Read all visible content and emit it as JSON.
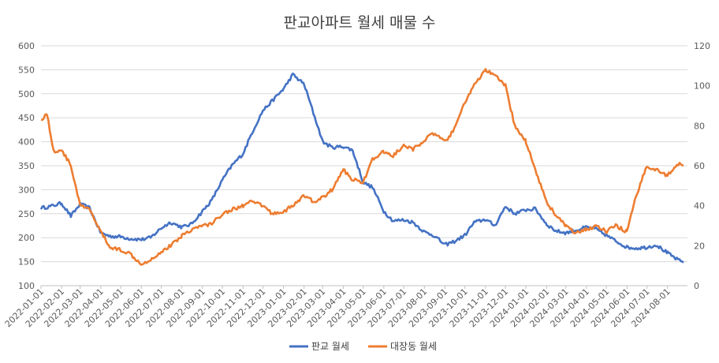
{
  "chart_data": {
    "type": "line",
    "title": "판교아파트 월세 매물 수",
    "x": [
      "2022-01-01",
      "2022-02-01",
      "2022-03-01",
      "2022-04-01",
      "2022-05-01",
      "2022-06-01",
      "2022-07-01",
      "2022-08-01",
      "2022-09-01",
      "2022-10-01",
      "2022-11-01",
      "2022-12-01",
      "2023-01-01",
      "2023-02-01",
      "2023-03-01",
      "2023-04-01",
      "2023-05-01",
      "2023-06-01",
      "2023-07-01",
      "2023-08-01",
      "2023-09-01",
      "2023-10-01",
      "2023-11-01",
      "2023-12-01",
      "2024-01-01",
      "2024-02-01",
      "2024-03-01",
      "2024-04-01",
      "2024-05-01",
      "2024-06-01",
      "2024-07-01",
      "2024-08-01"
    ],
    "series": [
      {
        "name": "판교 월세",
        "axis": "left",
        "color": "#4472C4",
        "points": [
          [
            "2022-01-01",
            262
          ],
          [
            "2022-01-15",
            265
          ],
          [
            "2022-02-01",
            272
          ],
          [
            "2022-02-15",
            245
          ],
          [
            "2022-03-01",
            270
          ],
          [
            "2022-03-15",
            262
          ],
          [
            "2022-04-01",
            210
          ],
          [
            "2022-04-15",
            203
          ],
          [
            "2022-05-01",
            202
          ],
          [
            "2022-05-15",
            198
          ],
          [
            "2022-06-01",
            196
          ],
          [
            "2022-06-15",
            200
          ],
          [
            "2022-07-01",
            220
          ],
          [
            "2022-07-15",
            232
          ],
          [
            "2022-08-01",
            222
          ],
          [
            "2022-08-15",
            228
          ],
          [
            "2022-09-01",
            255
          ],
          [
            "2022-09-15",
            278
          ],
          [
            "2022-10-01",
            320
          ],
          [
            "2022-10-15",
            350
          ],
          [
            "2022-11-01",
            375
          ],
          [
            "2022-11-15",
            420
          ],
          [
            "2022-12-01",
            465
          ],
          [
            "2022-12-15",
            485
          ],
          [
            "2023-01-01",
            510
          ],
          [
            "2023-01-15",
            540
          ],
          [
            "2023-02-01",
            520
          ],
          [
            "2023-02-15",
            460
          ],
          [
            "2023-03-01",
            400
          ],
          [
            "2023-03-15",
            388
          ],
          [
            "2023-04-01",
            390
          ],
          [
            "2023-04-15",
            382
          ],
          [
            "2023-05-01",
            315
          ],
          [
            "2023-05-15",
            305
          ],
          [
            "2023-06-01",
            255
          ],
          [
            "2023-06-15",
            235
          ],
          [
            "2023-07-01",
            237
          ],
          [
            "2023-07-15",
            232
          ],
          [
            "2023-08-01",
            212
          ],
          [
            "2023-08-15",
            205
          ],
          [
            "2023-09-01",
            185
          ],
          [
            "2023-09-15",
            192
          ],
          [
            "2023-10-01",
            205
          ],
          [
            "2023-10-15",
            232
          ],
          [
            "2023-11-01",
            238
          ],
          [
            "2023-11-15",
            225
          ],
          [
            "2023-12-01",
            265
          ],
          [
            "2023-12-15",
            250
          ],
          [
            "2024-01-01",
            258
          ],
          [
            "2024-01-15",
            260
          ],
          [
            "2024-02-01",
            228
          ],
          [
            "2024-02-15",
            214
          ],
          [
            "2024-03-01",
            210
          ],
          [
            "2024-03-15",
            215
          ],
          [
            "2024-04-01",
            222
          ],
          [
            "2024-04-15",
            218
          ],
          [
            "2024-05-01",
            205
          ],
          [
            "2024-05-15",
            193
          ],
          [
            "2024-06-01",
            180
          ],
          [
            "2024-06-15",
            178
          ],
          [
            "2024-07-01",
            180
          ],
          [
            "2024-07-15",
            185
          ],
          [
            "2024-08-01",
            168
          ],
          [
            "2024-08-15",
            155
          ],
          [
            "2024-08-25",
            148
          ]
        ]
      },
      {
        "name": "대장동 월세",
        "axis": "right",
        "color": "#ED7D31",
        "points": [
          [
            "2022-01-01",
            83
          ],
          [
            "2022-01-10",
            86
          ],
          [
            "2022-01-20",
            67
          ],
          [
            "2022-02-01",
            68
          ],
          [
            "2022-02-15",
            60
          ],
          [
            "2022-03-01",
            40
          ],
          [
            "2022-03-15",
            38
          ],
          [
            "2022-04-01",
            27
          ],
          [
            "2022-04-15",
            19
          ],
          [
            "2022-05-01",
            18
          ],
          [
            "2022-05-15",
            16
          ],
          [
            "2022-06-01",
            11
          ],
          [
            "2022-06-15",
            13
          ],
          [
            "2022-07-01",
            17
          ],
          [
            "2022-07-15",
            20
          ],
          [
            "2022-08-01",
            25
          ],
          [
            "2022-08-15",
            28
          ],
          [
            "2022-09-01",
            30
          ],
          [
            "2022-09-15",
            31
          ],
          [
            "2022-10-01",
            36
          ],
          [
            "2022-10-15",
            38
          ],
          [
            "2022-11-01",
            40
          ],
          [
            "2022-11-15",
            42
          ],
          [
            "2022-12-01",
            40
          ],
          [
            "2022-12-15",
            36
          ],
          [
            "2023-01-01",
            37
          ],
          [
            "2023-01-15",
            40
          ],
          [
            "2023-02-01",
            45
          ],
          [
            "2023-02-15",
            42
          ],
          [
            "2023-03-01",
            44
          ],
          [
            "2023-03-15",
            48
          ],
          [
            "2023-04-01",
            58
          ],
          [
            "2023-04-15",
            53
          ],
          [
            "2023-05-01",
            52
          ],
          [
            "2023-05-15",
            63
          ],
          [
            "2023-06-01",
            67
          ],
          [
            "2023-06-15",
            65
          ],
          [
            "2023-07-01",
            70
          ],
          [
            "2023-07-15",
            68
          ],
          [
            "2023-08-01",
            73
          ],
          [
            "2023-08-15",
            76
          ],
          [
            "2023-09-01",
            72
          ],
          [
            "2023-09-15",
            78
          ],
          [
            "2023-10-01",
            92
          ],
          [
            "2023-10-15",
            100
          ],
          [
            "2023-11-01",
            108
          ],
          [
            "2023-11-15",
            105
          ],
          [
            "2023-12-01",
            100
          ],
          [
            "2023-12-15",
            80
          ],
          [
            "2024-01-01",
            72
          ],
          [
            "2024-01-15",
            58
          ],
          [
            "2024-02-01",
            42
          ],
          [
            "2024-02-15",
            35
          ],
          [
            "2024-03-01",
            30
          ],
          [
            "2024-03-15",
            26
          ],
          [
            "2024-04-01",
            28
          ],
          [
            "2024-04-15",
            30
          ],
          [
            "2024-05-01",
            27
          ],
          [
            "2024-05-15",
            30
          ],
          [
            "2024-06-01",
            27
          ],
          [
            "2024-06-15",
            45
          ],
          [
            "2024-07-01",
            60
          ],
          [
            "2024-07-15",
            58
          ],
          [
            "2024-08-01",
            55
          ],
          [
            "2024-08-15",
            61
          ],
          [
            "2024-08-25",
            60
          ]
        ]
      }
    ],
    "y_left": {
      "min": 100,
      "max": 600,
      "ticks": [
        100,
        150,
        200,
        250,
        300,
        350,
        400,
        450,
        500,
        550,
        600
      ]
    },
    "y_right": {
      "min": 0,
      "max": 120,
      "ticks": [
        0,
        20,
        40,
        60,
        80,
        100,
        120
      ]
    },
    "x_tick_labels": [
      "2022-01-01",
      "2022-02-01",
      "2022-03-01",
      "2022-04-01",
      "2022-05-01",
      "2022-06-01",
      "2022-07-01",
      "2022-08-01",
      "2022-09-01",
      "2022-10-01",
      "2022-11-01",
      "2022-12-01",
      "2023-01-01",
      "2023-02-01",
      "2023-03-01",
      "2023-04-01",
      "2023-05-01",
      "2023-06-01",
      "2023-07-01",
      "2023-08-01",
      "2023-09-01",
      "2023-10-01",
      "2023-11-01",
      "2023-12-01",
      "2024-01-01",
      "2024-02-01",
      "2024-03-01",
      "2024-04-01",
      "2024-05-01",
      "2024-06-01",
      "2024-07-01",
      "2024-08-01"
    ],
    "x_range": [
      "2022-01-01",
      "2024-08-31"
    ],
    "grid": true,
    "legend": "bottom"
  }
}
